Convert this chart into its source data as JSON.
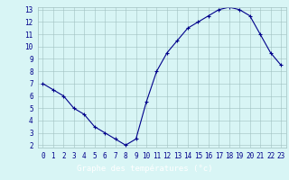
{
  "hours": [
    0,
    1,
    2,
    3,
    4,
    5,
    6,
    7,
    8,
    9,
    10,
    11,
    12,
    13,
    14,
    15,
    16,
    17,
    18,
    19,
    20,
    21,
    22,
    23
  ],
  "temps": [
    7.0,
    6.5,
    6.0,
    5.0,
    4.5,
    3.5,
    3.0,
    2.5,
    2.0,
    2.5,
    5.5,
    8.0,
    9.5,
    10.5,
    11.5,
    12.0,
    12.5,
    13.0,
    13.2,
    13.0,
    12.5,
    11.0,
    9.5,
    8.5
  ],
  "line_color": "#00008B",
  "marker": "+",
  "marker_size": 3,
  "bg_color": "#d8f5f5",
  "grid_color": "#a0c0c0",
  "tick_color": "#00008B",
  "xlabel": "Graphe des températures (°c)",
  "xlabel_bg": "#000080",
  "xlabel_fg": "#ffffff",
  "ylim_min": 2,
  "ylim_max": 13,
  "xlim_min": 0,
  "xlim_max": 23,
  "yticks": [
    2,
    3,
    4,
    5,
    6,
    7,
    8,
    9,
    10,
    11,
    12,
    13
  ],
  "xticks": [
    0,
    1,
    2,
    3,
    4,
    5,
    6,
    7,
    8,
    9,
    10,
    11,
    12,
    13,
    14,
    15,
    16,
    17,
    18,
    19,
    20,
    21,
    22,
    23
  ],
  "tick_fontsize": 5.5,
  "label_fontsize": 6.5
}
